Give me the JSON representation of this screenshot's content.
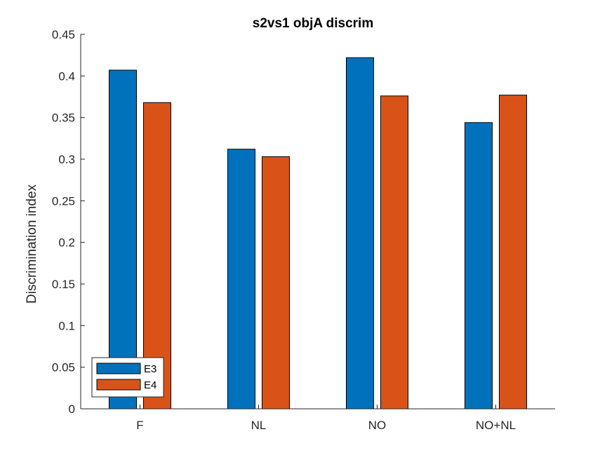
{
  "chart_data": {
    "type": "bar",
    "title": "s2vs1 objA discrim",
    "xlabel": "",
    "ylabel": "Discrimination index",
    "categories": [
      "F",
      "NL",
      "NO",
      "NO+NL"
    ],
    "series": [
      {
        "name": "E3",
        "color": "#0072BD",
        "values": [
          0.407,
          0.312,
          0.422,
          0.344
        ]
      },
      {
        "name": "E4",
        "color": "#D95319",
        "values": [
          0.368,
          0.303,
          0.376,
          0.377
        ]
      }
    ],
    "ylim": [
      0,
      0.45
    ],
    "yticks": [
      0,
      0.05,
      0.1,
      0.15,
      0.2,
      0.25,
      0.3,
      0.35,
      0.4,
      0.45
    ],
    "ytick_labels": [
      "0",
      "0.05",
      "0.1",
      "0.15",
      "0.2",
      "0.25",
      "0.3",
      "0.35",
      "0.4",
      "0.45"
    ],
    "grid": false,
    "legend_position": "bottom-left"
  }
}
